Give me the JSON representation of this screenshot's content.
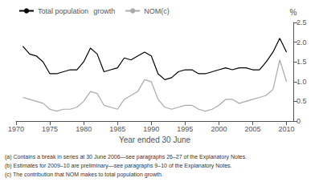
{
  "chart_data": {
    "type": "line",
    "x": [
      1971,
      1972,
      1973,
      1974,
      1975,
      1976,
      1977,
      1978,
      1979,
      1980,
      1981,
      1982,
      1983,
      1984,
      1985,
      1986,
      1987,
      1988,
      1989,
      1990,
      1991,
      1992,
      1993,
      1994,
      1995,
      1996,
      1997,
      1998,
      1999,
      2000,
      2001,
      2002,
      2003,
      2004,
      2005,
      2006,
      2007,
      2008,
      2009,
      2010
    ],
    "series": [
      {
        "name": "Total population   growth",
        "color": "#000000",
        "values": [
          1.9,
          1.7,
          1.65,
          1.5,
          1.2,
          1.2,
          1.25,
          1.3,
          1.3,
          1.5,
          1.85,
          1.7,
          1.25,
          1.3,
          1.35,
          1.6,
          1.55,
          1.65,
          1.75,
          1.65,
          1.2,
          1.05,
          1.1,
          1.25,
          1.3,
          1.3,
          1.2,
          1.2,
          1.25,
          1.3,
          1.35,
          1.3,
          1.35,
          1.35,
          1.3,
          1.3,
          1.5,
          1.75,
          2.1,
          1.75
        ]
      },
      {
        "name": "NOM(c)",
        "color": "#aaaaaa",
        "values": [
          0.6,
          0.55,
          0.5,
          0.45,
          0.3,
          0.25,
          0.3,
          0.3,
          0.35,
          0.5,
          0.75,
          0.7,
          0.4,
          0.35,
          0.3,
          0.55,
          0.65,
          0.75,
          1.05,
          1.0,
          0.55,
          0.35,
          0.3,
          0.35,
          0.4,
          0.4,
          0.3,
          0.25,
          0.3,
          0.4,
          0.55,
          0.55,
          0.45,
          0.5,
          0.55,
          0.6,
          0.65,
          0.8,
          1.55,
          1.0
        ]
      }
    ],
    "xlabel": "Year ended 30 June",
    "ylabel": "%",
    "xlim": [
      1970,
      2011
    ],
    "xticks": [
      1970,
      1975,
      1980,
      1985,
      1990,
      1995,
      2000,
      2005,
      2010
    ],
    "ylim": [
      0,
      2.5
    ],
    "yticks": [
      0,
      0.5,
      {
        "value": 1.0,
        "label": "1.0"
      },
      1.5,
      {
        "value": 2.0,
        "label": "2.0"
      },
      2.5
    ],
    "grid": false,
    "legend": "upper left",
    "annotations": [
      "(a) Contains a break in series at 30 June 2006—see paragraphs 26–27 of the Explanatory Notes.",
      "(b) Estimates for 2009–10 are preliminary—see paragraphs 9–10 of the Explanatory Notes.",
      "(c) The contribution that NOM makes to total population growth."
    ]
  }
}
